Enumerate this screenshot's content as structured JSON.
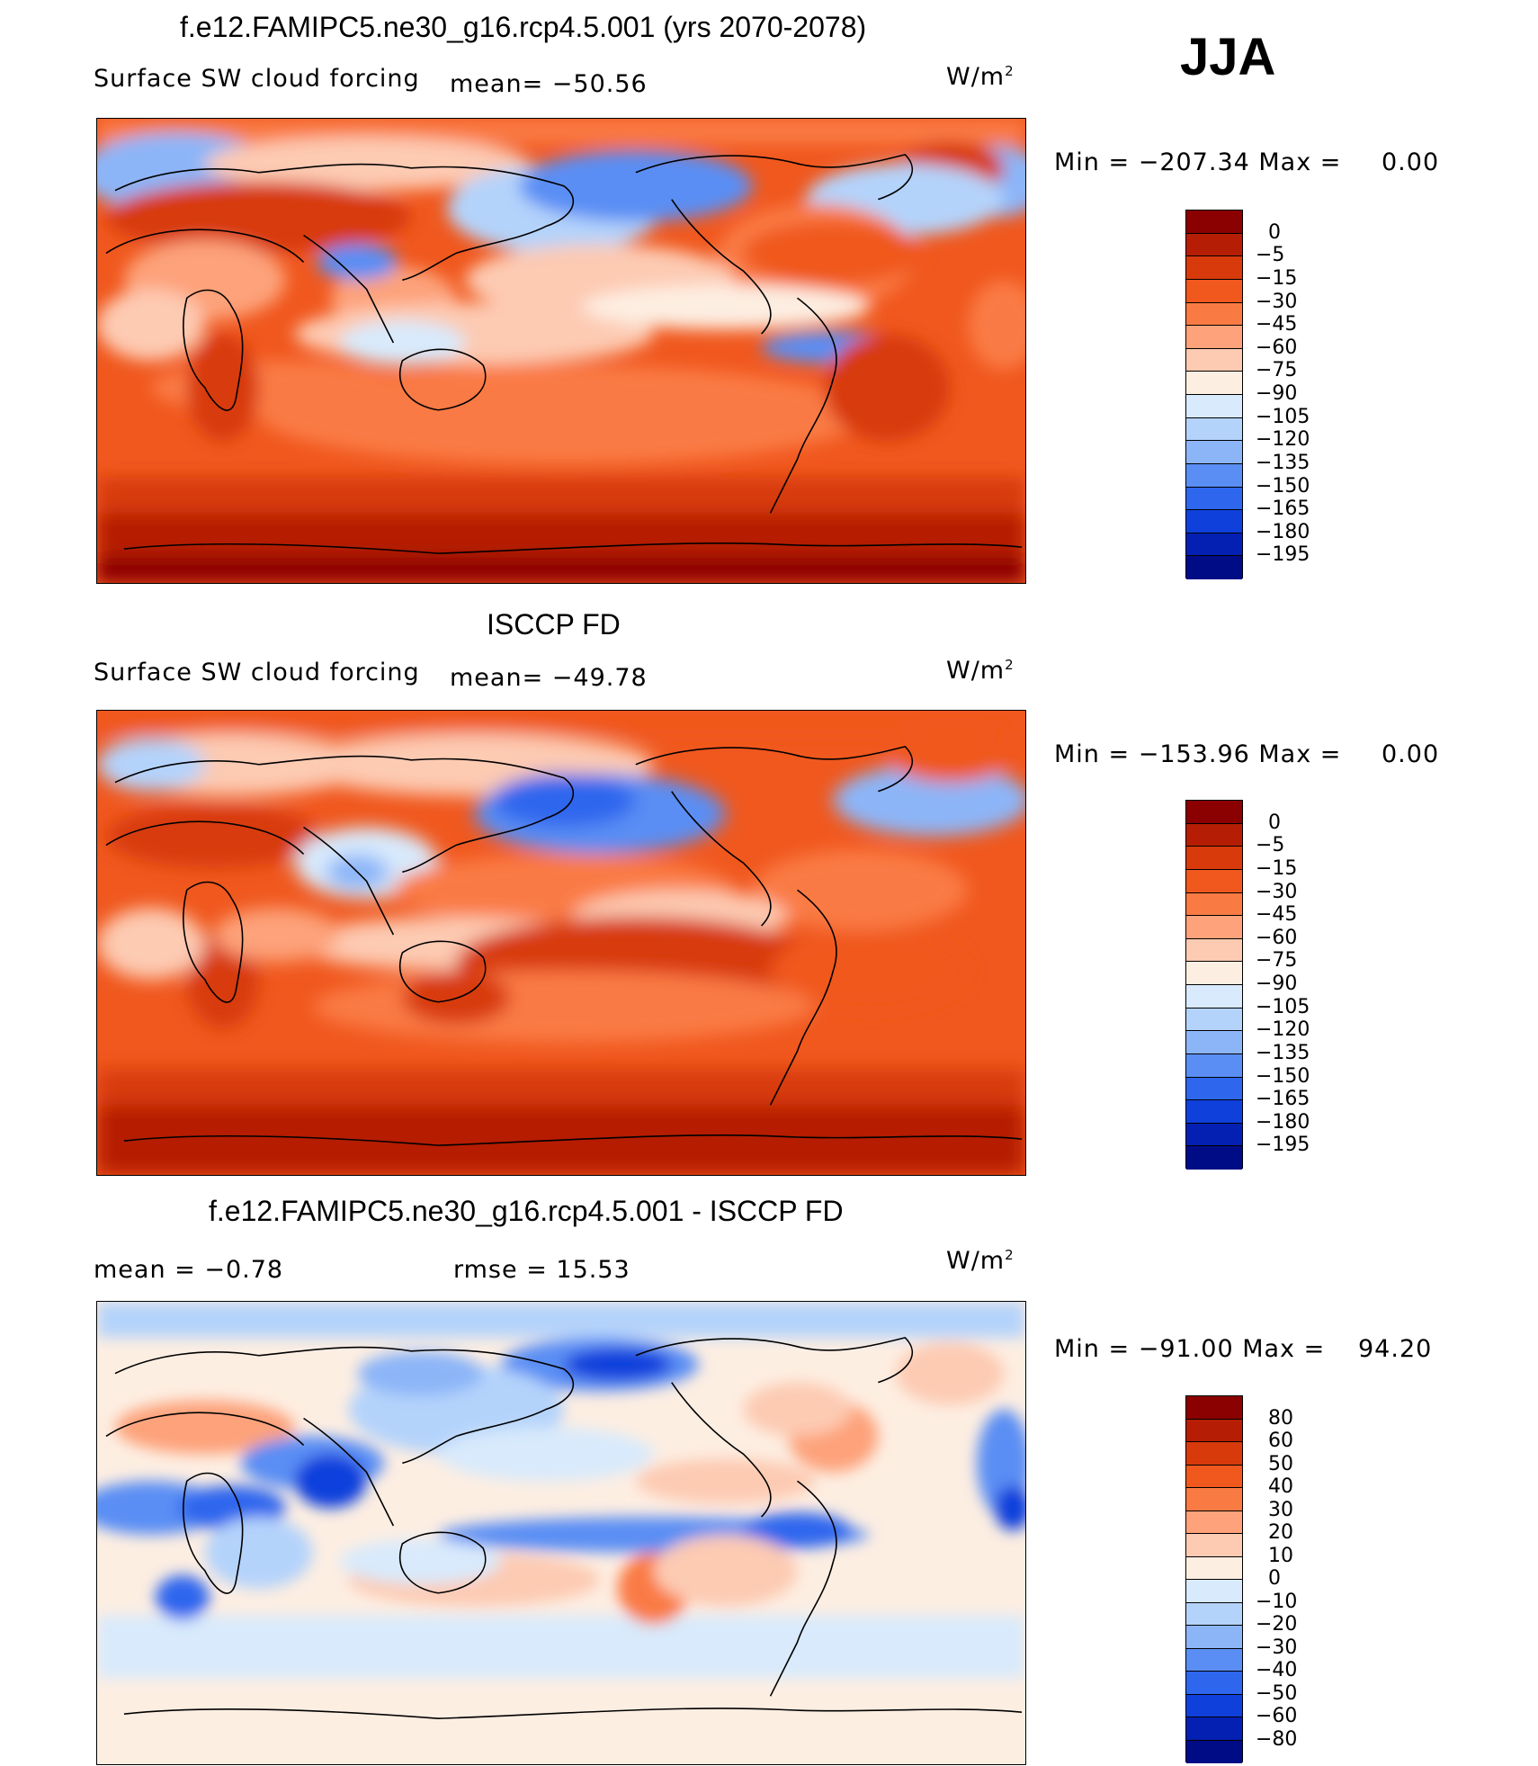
{
  "season": "JJA",
  "units_prefix": "W/m",
  "units_sup": "2",
  "panels": [
    {
      "title": "f.e12.FAMIPC5.ne30_g16.rcp4.5.001 (yrs 2070-2078)",
      "left_label": "Surface SW cloud forcing",
      "mid_label": "mean= −50.56",
      "minmax_label": "Min  =  −207.34  Max  =",
      "max_value": "0.00",
      "colorbar": {
        "colors": [
          "#8b0000",
          "#b51e04",
          "#d83a0c",
          "#f0581e",
          "#fa7a44",
          "#fda27a",
          "#fdcab2",
          "#fdeee2",
          "#d8eafc",
          "#b4d3fb",
          "#8cb5f8",
          "#5a8ef4",
          "#2e66ee",
          "#1040dc",
          "#0420b2",
          "#000c86"
        ],
        "labels": [
          "0",
          "−5",
          "−15",
          "−30",
          "−45",
          "−60",
          "−75",
          "−90",
          "−105",
          "−120",
          "−135",
          "−150",
          "−165",
          "−180",
          "−195"
        ]
      }
    },
    {
      "title": "ISCCP FD",
      "left_label": "Surface SW cloud forcing",
      "mid_label": "mean= −49.78",
      "minmax_label": "Min  =  −153.96  Max  =",
      "max_value": "0.00",
      "colorbar": {
        "colors": [
          "#8b0000",
          "#b51e04",
          "#d83a0c",
          "#f0581e",
          "#fa7a44",
          "#fda27a",
          "#fdcab2",
          "#fdeee2",
          "#d8eafc",
          "#b4d3fb",
          "#8cb5f8",
          "#5a8ef4",
          "#2e66ee",
          "#1040dc",
          "#0420b2",
          "#000c86"
        ],
        "labels": [
          "0",
          "−5",
          "−15",
          "−30",
          "−45",
          "−60",
          "−75",
          "−90",
          "−105",
          "−120",
          "−135",
          "−150",
          "−165",
          "−180",
          "−195"
        ]
      }
    },
    {
      "title": "f.e12.FAMIPC5.ne30_g16.rcp4.5.001 - ISCCP FD",
      "left_label": "mean  =    −0.78",
      "mid_label": "rmse  =    15.53",
      "minmax_label": "Min  =  −91.00  Max  =",
      "max_value": "94.20",
      "colorbar": {
        "colors": [
          "#8b0000",
          "#b51e04",
          "#d83a0c",
          "#f0581e",
          "#fa7a44",
          "#fda27a",
          "#fdcab2",
          "#fdeee2",
          "#d8eafc",
          "#b4d3fb",
          "#8cb5f8",
          "#5a8ef4",
          "#2e66ee",
          "#1040dc",
          "#0420b2",
          "#000c86"
        ],
        "labels": [
          "80",
          "60",
          "50",
          "40",
          "30",
          "20",
          "10",
          "0",
          "−10",
          "−20",
          "−30",
          "−40",
          "−50",
          "−60",
          "−80"
        ]
      }
    }
  ]
}
